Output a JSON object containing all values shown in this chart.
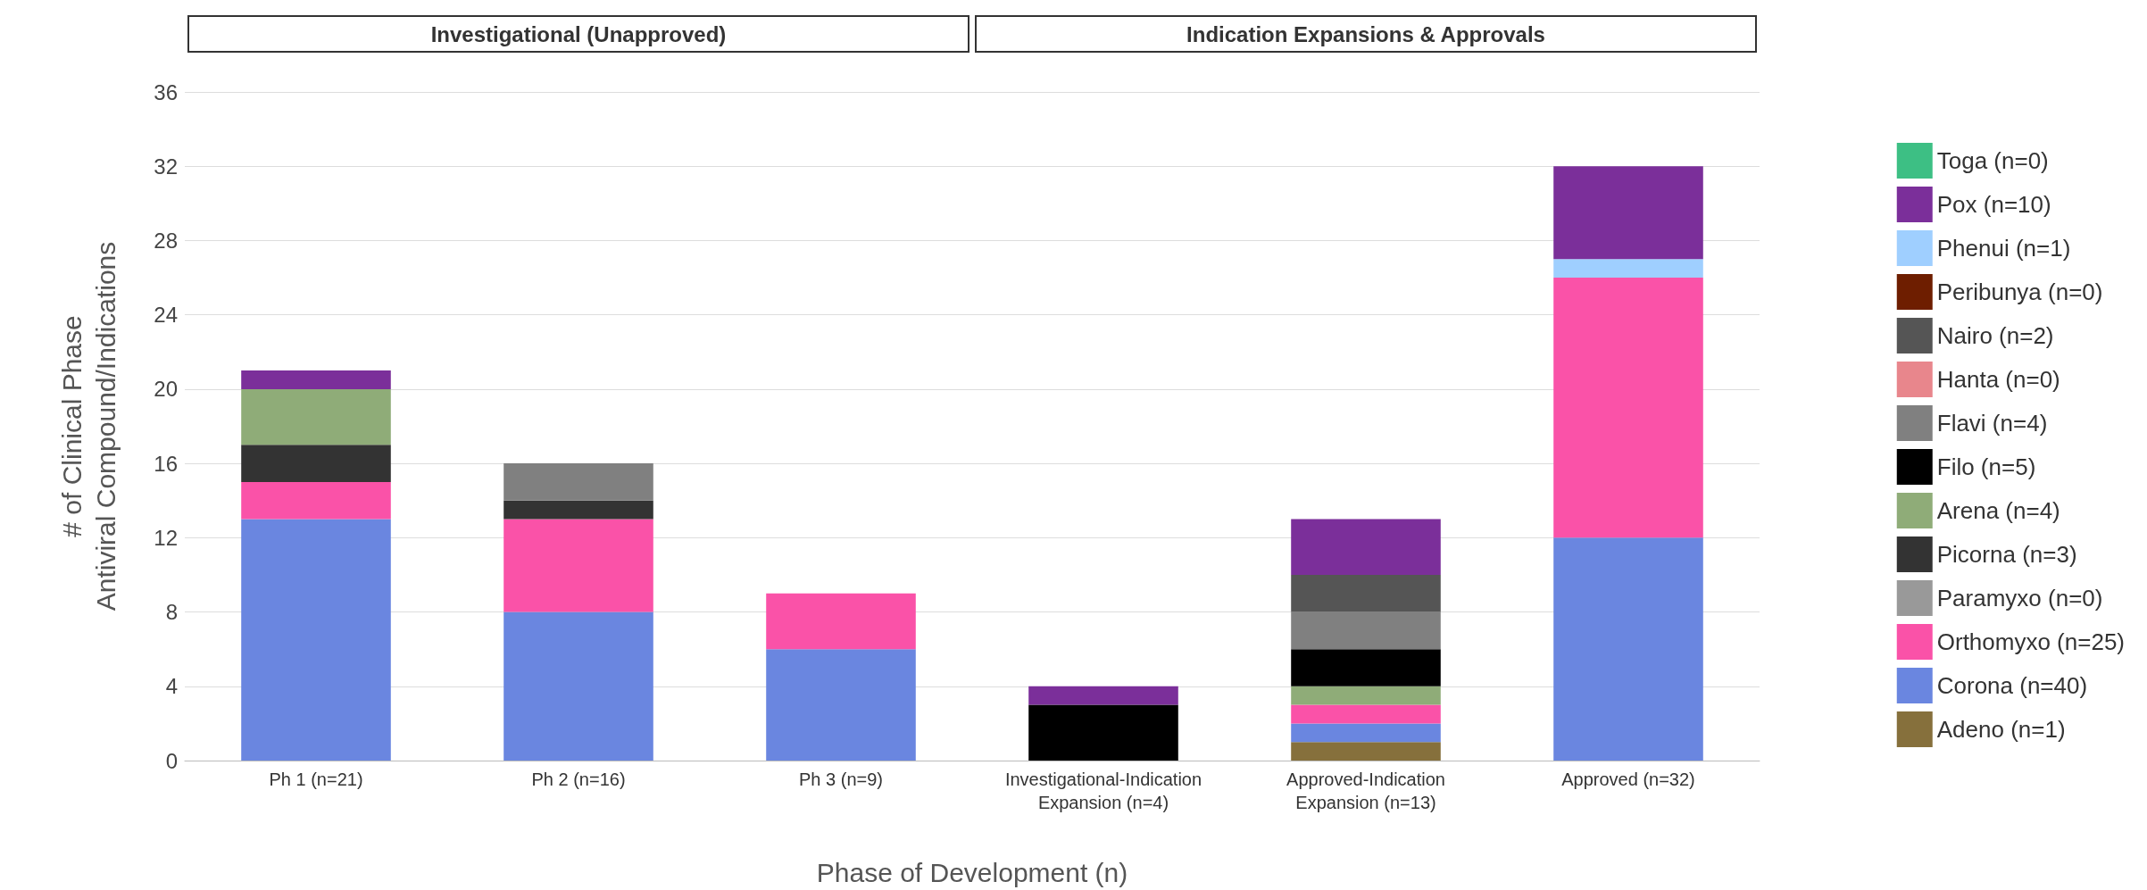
{
  "chart_data": {
    "type": "bar",
    "stacked": true,
    "xlabel": "Phase of Development (n)",
    "ylabel": "# of Clinical Phase\nAntiviral Compound/Indications",
    "categories": [
      "Ph 1 (n=21)",
      "Ph 2 (n=16)",
      "Ph 3 (n=9)",
      "Investigational-Indication\nExpansion (n=4)",
      "Approved-Indication\nExpansion (n=13)",
      "Approved (n=32)"
    ],
    "series": [
      {
        "name": "Adeno (n=1)",
        "color": "#86703c",
        "values": [
          0,
          0,
          0,
          0,
          1,
          0
        ]
      },
      {
        "name": "Corona (n=40)",
        "color": "#6a86e0",
        "values": [
          13,
          8,
          6,
          0,
          1,
          12
        ]
      },
      {
        "name": "Orthomyxo (n=25)",
        "color": "#fa52a8",
        "values": [
          2,
          5,
          3,
          0,
          1,
          14
        ]
      },
      {
        "name": "Paramyxo (n=0)",
        "color": "#999999",
        "values": [
          0,
          0,
          0,
          0,
          0,
          0
        ]
      },
      {
        "name": "Picorna (n=3)",
        "color": "#333333",
        "values": [
          2,
          1,
          0,
          0,
          0,
          0
        ]
      },
      {
        "name": "Arena (n=4)",
        "color": "#8fac78",
        "values": [
          3,
          0,
          0,
          0,
          1,
          0
        ]
      },
      {
        "name": "Filo (n=5)",
        "color": "#000000",
        "values": [
          0,
          0,
          0,
          3,
          2,
          0
        ]
      },
      {
        "name": "Flavi (n=4)",
        "color": "#808080",
        "values": [
          0,
          2,
          0,
          0,
          2,
          0
        ]
      },
      {
        "name": "Hanta (n=0)",
        "color": "#e8868c",
        "values": [
          0,
          0,
          0,
          0,
          0,
          0
        ]
      },
      {
        "name": "Nairo (n=2)",
        "color": "#555555",
        "values": [
          0,
          0,
          0,
          0,
          2,
          0
        ]
      },
      {
        "name": "Peribunya (n=0)",
        "color": "#6e1e00",
        "values": [
          0,
          0,
          0,
          0,
          0,
          0
        ]
      },
      {
        "name": "Phenui (n=1)",
        "color": "#9fcfff",
        "values": [
          0,
          0,
          0,
          0,
          0,
          1
        ]
      },
      {
        "name": "Pox (n=10)",
        "color": "#7b2f9a",
        "values": [
          1,
          0,
          0,
          1,
          3,
          5
        ]
      },
      {
        "name": "Toga (n=0)",
        "color": "#3dbf84",
        "values": [
          0,
          0,
          0,
          0,
          0,
          0
        ]
      }
    ],
    "ylim": [
      0,
      36
    ],
    "yticks": [
      0,
      4,
      8,
      12,
      16,
      20,
      24,
      28,
      32,
      36
    ],
    "grid": "y",
    "legend": "right",
    "annotations": [
      "Investigational (Unapproved)",
      "Indication Expansions & Approvals"
    ]
  }
}
